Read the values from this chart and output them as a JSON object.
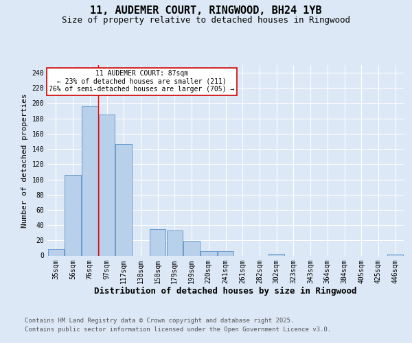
{
  "title_line1": "11, AUDEMER COURT, RINGWOOD, BH24 1YB",
  "title_line2": "Size of property relative to detached houses in Ringwood",
  "xlabel": "Distribution of detached houses by size in Ringwood",
  "ylabel": "Number of detached properties",
  "categories": [
    "35sqm",
    "56sqm",
    "76sqm",
    "97sqm",
    "117sqm",
    "138sqm",
    "158sqm",
    "179sqm",
    "199sqm",
    "220sqm",
    "241sqm",
    "261sqm",
    "282sqm",
    "302sqm",
    "323sqm",
    "343sqm",
    "364sqm",
    "384sqm",
    "405sqm",
    "425sqm",
    "446sqm"
  ],
  "values": [
    9,
    106,
    196,
    185,
    146,
    0,
    35,
    33,
    19,
    6,
    6,
    0,
    0,
    2,
    0,
    0,
    0,
    0,
    0,
    0,
    1
  ],
  "bar_color": "#b8d0ea",
  "bar_edgecolor": "#6699cc",
  "bg_color": "#dce8f5",
  "plot_bg_color": "#dce8f5",
  "grid_color": "#ffffff",
  "red_line_x": 2.5,
  "annotation_text": "11 AUDEMER COURT: 87sqm\n← 23% of detached houses are smaller (211)\n76% of semi-detached houses are larger (705) →",
  "annotation_box_facecolor": "#ffffff",
  "annotation_box_edgecolor": "#cc0000",
  "ylim": [
    0,
    250
  ],
  "yticks": [
    0,
    20,
    40,
    60,
    80,
    100,
    120,
    140,
    160,
    180,
    200,
    220,
    240
  ],
  "footer_line1": "Contains HM Land Registry data © Crown copyright and database right 2025.",
  "footer_line2": "Contains public sector information licensed under the Open Government Licence v3.0.",
  "title_fontsize": 11,
  "subtitle_fontsize": 9,
  "xlabel_fontsize": 9,
  "ylabel_fontsize": 8,
  "tick_fontsize": 7,
  "annotation_fontsize": 7,
  "footer_fontsize": 6.5
}
